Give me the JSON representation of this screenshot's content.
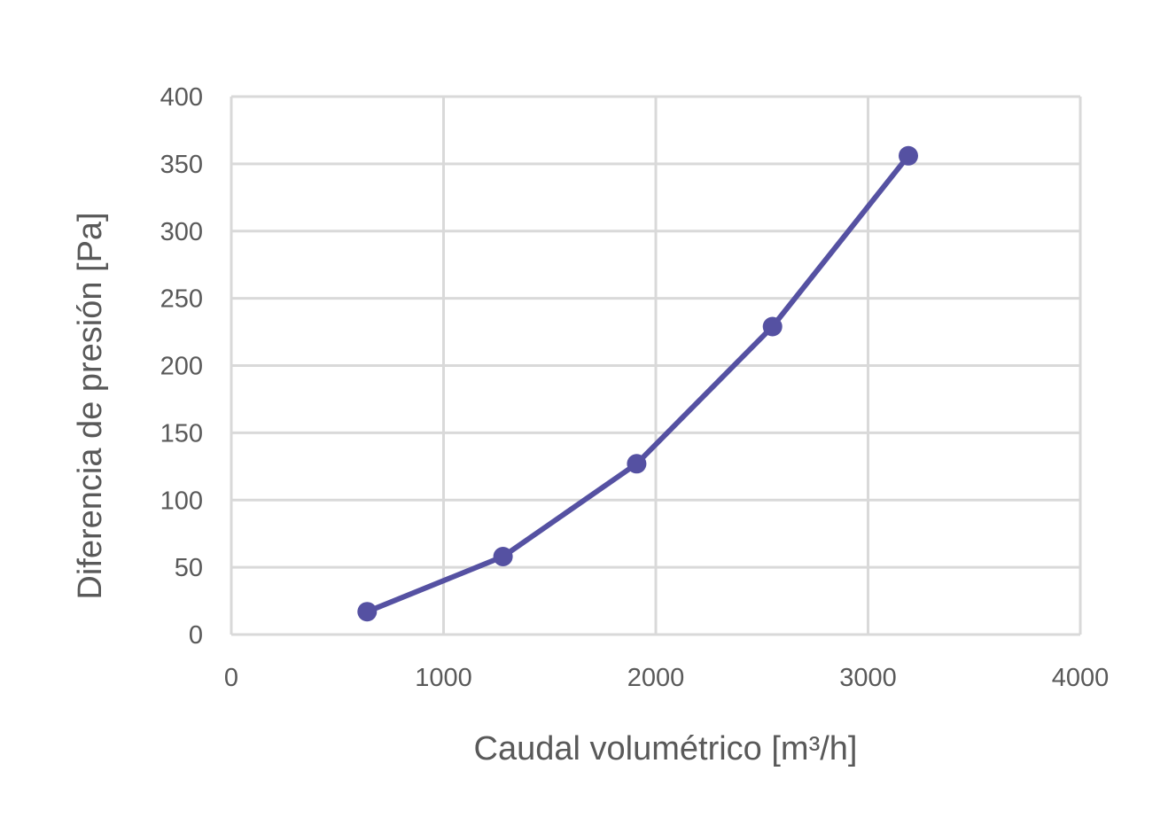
{
  "chart_data": {
    "type": "line",
    "title": "",
    "xlabel": "Caudal volumétrico [m³/h]",
    "ylabel": "Diferencia de presión [Pa]",
    "xlim": [
      0,
      4000
    ],
    "ylim": [
      0,
      400
    ],
    "x_ticks": [
      0,
      1000,
      2000,
      3000,
      4000
    ],
    "y_ticks": [
      0,
      50,
      100,
      150,
      200,
      250,
      300,
      350,
      400
    ],
    "x_tick_labels": [
      "0",
      "1000",
      "2000",
      "3000",
      "4000"
    ],
    "y_tick_labels": [
      "0",
      "50",
      "100",
      "150",
      "200",
      "250",
      "300",
      "350",
      "400"
    ],
    "grid": true,
    "legend": "none",
    "series": [
      {
        "color": "#5551a2",
        "markers": true,
        "x": [
          640,
          1280,
          1910,
          2550,
          3190
        ],
        "y": [
          17,
          58,
          127,
          229,
          356
        ]
      }
    ]
  }
}
